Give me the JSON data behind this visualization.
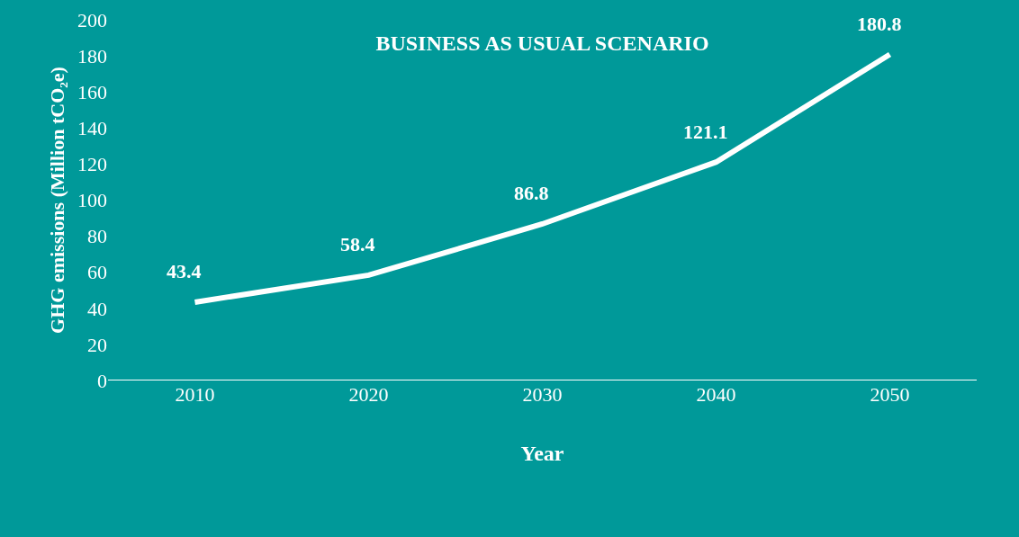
{
  "chart_data": {
    "type": "line",
    "title": "BUSINESS AS USUAL SCENARIO",
    "xlabel": "Year",
    "ylabel": "GHG emissions (Million tCO₂e)",
    "categories": [
      "2010",
      "2020",
      "2030",
      "2040",
      "2050"
    ],
    "series": [
      {
        "color": "#ffffff",
        "values": [
          43.4,
          58.4,
          86.8,
          121.1,
          180.8
        ]
      }
    ],
    "ylim": [
      0,
      200
    ],
    "yticks": [
      0,
      20,
      40,
      60,
      80,
      100,
      120,
      140,
      160,
      180,
      200
    ],
    "data_labels": true,
    "marker": "none",
    "line_style": "solid"
  }
}
